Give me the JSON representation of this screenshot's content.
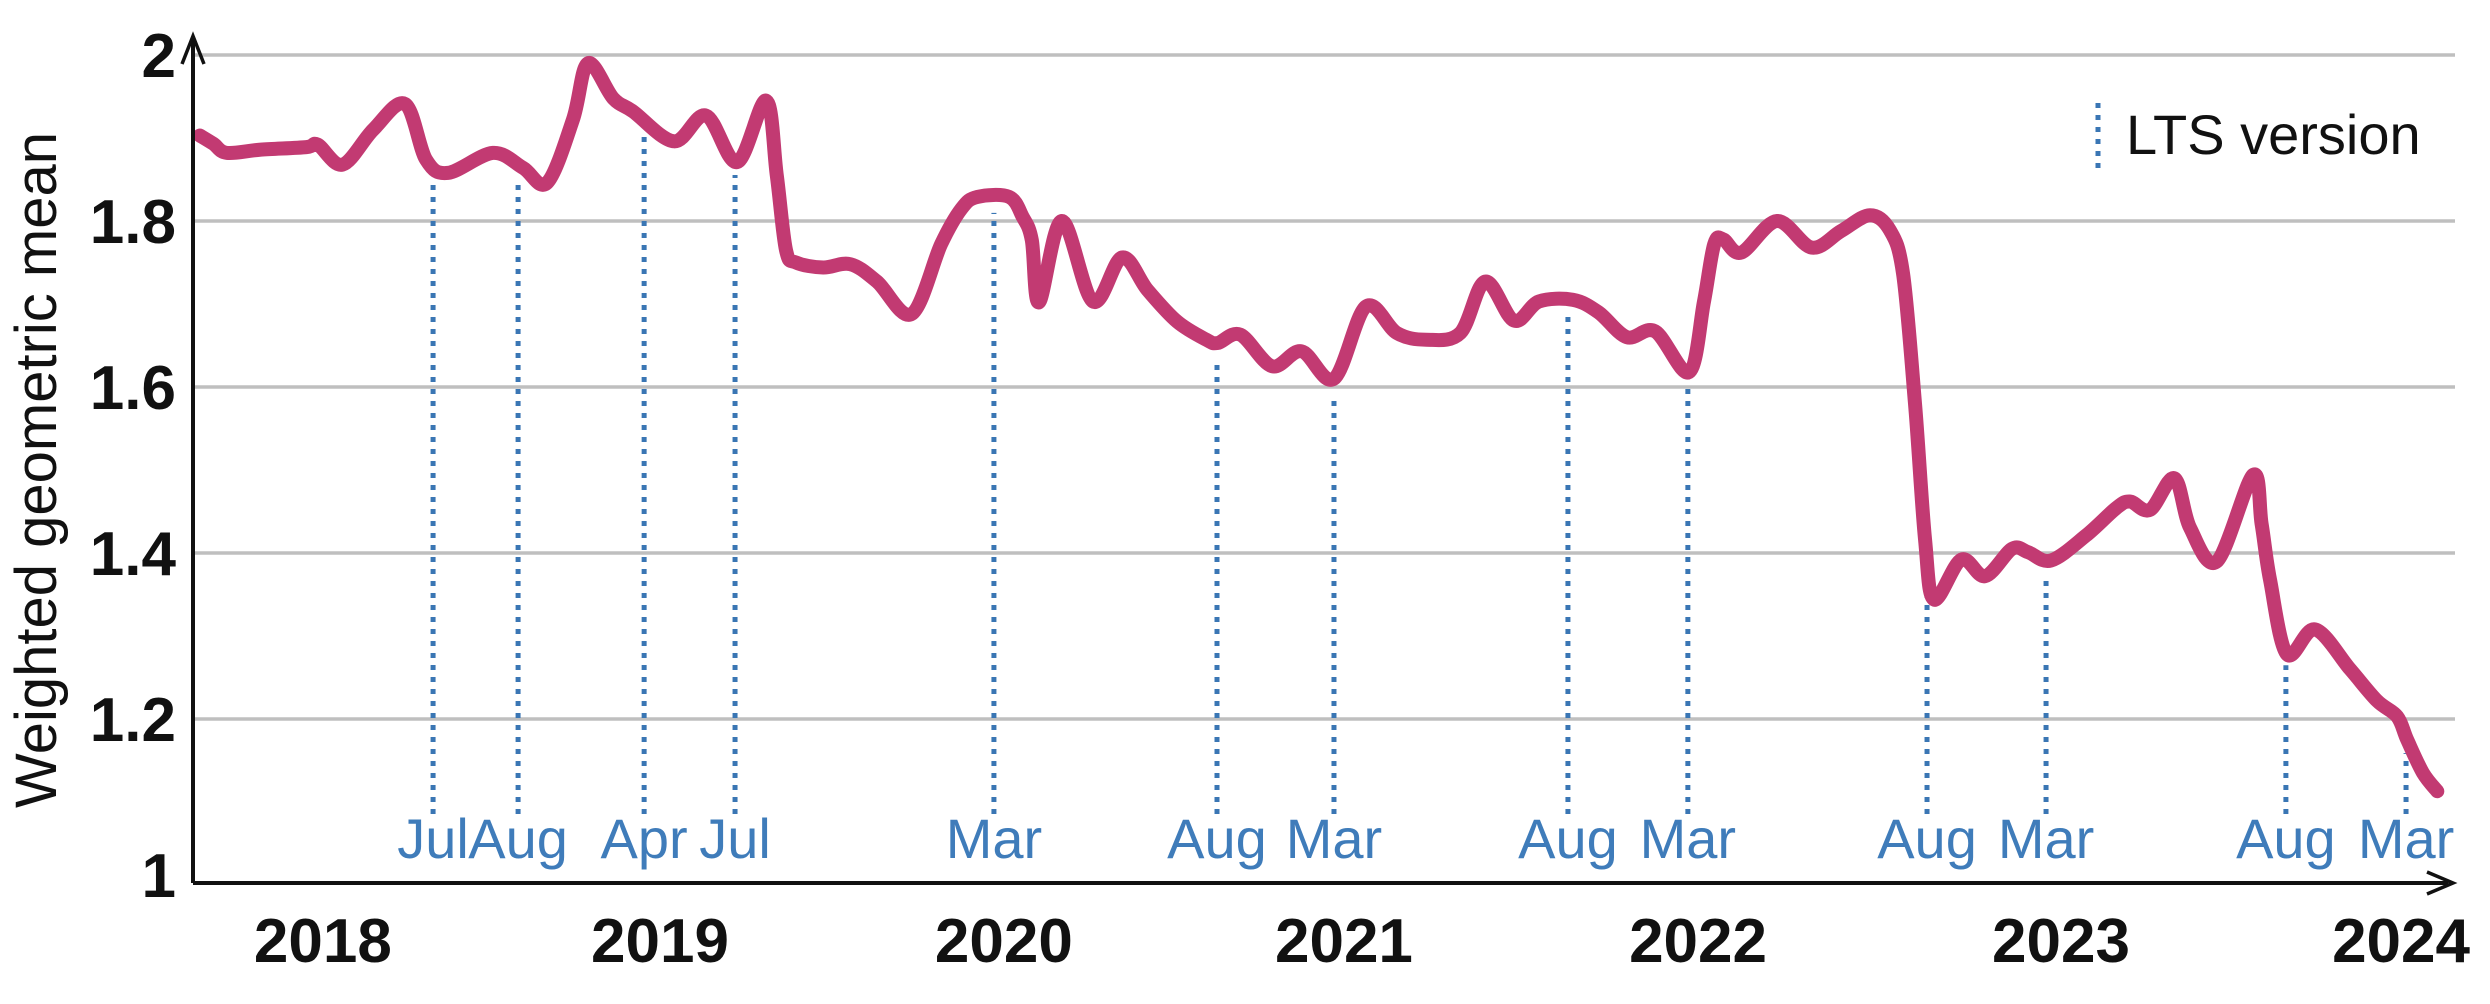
{
  "colors": {
    "series": "#c23a72",
    "lts": "#3a76b4",
    "month_label": "#3f7cba",
    "grid": "#bfbfbf",
    "axis": "#111111",
    "background": "#ffffff",
    "text": "#111111"
  },
  "chart_data": {
    "type": "line",
    "title": "",
    "xlabel": "",
    "ylabel": "Weighted geometric mean",
    "ylim": [
      1,
      2
    ],
    "grid": "horizontal only",
    "legend": {
      "label": "LTS version",
      "position": "top-right",
      "marker": "blue dotted vertical line"
    },
    "x_axis_note": "release-time axis from late 2017 to early 2024; positions are fractions 0-1 along the axis",
    "y_axis": {
      "ticks": [
        {
          "label": "2",
          "value": 2.0
        },
        {
          "label": "1.8",
          "value": 1.8
        },
        {
          "label": "1.6",
          "value": 1.6
        },
        {
          "label": "1.4",
          "value": 1.4
        },
        {
          "label": "1.2",
          "value": 1.2
        },
        {
          "label": "1",
          "value": 1.0
        }
      ]
    },
    "x_axis": {
      "ticks": [
        {
          "label": "2018",
          "pos": 0.0573
        },
        {
          "label": "2019",
          "pos": 0.206
        },
        {
          "label": "2020",
          "pos": 0.3577
        },
        {
          "label": "2021",
          "pos": 0.5077
        },
        {
          "label": "2022",
          "pos": 0.6639
        },
        {
          "label": "2023",
          "pos": 0.824
        },
        {
          "label": "2024",
          "pos": 0.974
        }
      ]
    },
    "lts_lines": [
      {
        "label": "Jul",
        "pos": 0.1059
      },
      {
        "label": "Aug",
        "pos": 0.1434
      },
      {
        "label": "Apr",
        "pos": 0.199
      },
      {
        "label": "Jul",
        "pos": 0.2391
      },
      {
        "label": "Mar",
        "pos": 0.3533
      },
      {
        "label": "Aug",
        "pos": 0.4517
      },
      {
        "label": "Mar",
        "pos": 0.5033
      },
      {
        "label": "Aug",
        "pos": 0.6065
      },
      {
        "label": "Mar",
        "pos": 0.6594
      },
      {
        "label": "Aug",
        "pos": 0.7649
      },
      {
        "label": "Mar",
        "pos": 0.8174
      },
      {
        "label": "Aug",
        "pos": 0.9232
      },
      {
        "label": "Mar",
        "pos": 0.9762
      }
    ],
    "series": [
      {
        "name": "Weighted geometric mean",
        "color_key": "series",
        "points": [
          [
            0.003,
            1.903
          ],
          [
            0.009,
            1.893
          ],
          [
            0.015,
            1.882
          ],
          [
            0.03,
            1.886
          ],
          [
            0.05,
            1.889
          ],
          [
            0.055,
            1.892
          ],
          [
            0.066,
            1.868
          ],
          [
            0.0795,
            1.91
          ],
          [
            0.0935,
            1.941
          ],
          [
            0.1028,
            1.874
          ],
          [
            0.1125,
            1.858
          ],
          [
            0.1323,
            1.882
          ],
          [
            0.1456,
            1.864
          ],
          [
            0.1562,
            1.846
          ],
          [
            0.1676,
            1.922
          ],
          [
            0.1742,
            1.99
          ],
          [
            0.1853,
            1.948
          ],
          [
            0.1941,
            1.932
          ],
          [
            0.2122,
            1.896
          ],
          [
            0.2263,
            1.927
          ],
          [
            0.24,
            1.871
          ],
          [
            0.2528,
            1.945
          ],
          [
            0.2575,
            1.855
          ],
          [
            0.2616,
            1.765
          ],
          [
            0.266,
            1.75
          ],
          [
            0.278,
            1.744
          ],
          [
            0.29,
            1.748
          ],
          [
            0.3017,
            1.727
          ],
          [
            0.317,
            1.688
          ],
          [
            0.33,
            1.772
          ],
          [
            0.339,
            1.815
          ],
          [
            0.346,
            1.829
          ],
          [
            0.36,
            1.829
          ],
          [
            0.366,
            1.805
          ],
          [
            0.37,
            1.777
          ],
          [
            0.3732,
            1.702
          ],
          [
            0.3833,
            1.8
          ],
          [
            0.397,
            1.703
          ],
          [
            0.4098,
            1.756
          ],
          [
            0.421,
            1.717
          ],
          [
            0.434,
            1.679
          ],
          [
            0.447,
            1.657
          ],
          [
            0.452,
            1.653
          ],
          [
            0.462,
            1.663
          ],
          [
            0.476,
            1.625
          ],
          [
            0.489,
            1.643
          ],
          [
            0.5033,
            1.61
          ],
          [
            0.5174,
            1.697
          ],
          [
            0.531,
            1.665
          ],
          [
            0.544,
            1.657
          ],
          [
            0.559,
            1.665
          ],
          [
            0.57,
            1.727
          ],
          [
            0.5827,
            1.68
          ],
          [
            0.5937,
            1.703
          ],
          [
            0.6087,
            1.705
          ],
          [
            0.62,
            1.69
          ],
          [
            0.6325,
            1.66
          ],
          [
            0.645,
            1.667
          ],
          [
            0.6599,
            1.618
          ],
          [
            0.6665,
            1.703
          ],
          [
            0.671,
            1.772
          ],
          [
            0.675,
            1.778
          ],
          [
            0.683,
            1.762
          ],
          [
            0.6987,
            1.8
          ],
          [
            0.714,
            1.768
          ],
          [
            0.727,
            1.788
          ],
          [
            0.7397,
            1.807
          ],
          [
            0.7485,
            1.789
          ],
          [
            0.7543,
            1.737
          ],
          [
            0.7596,
            1.58
          ],
          [
            0.764,
            1.417
          ],
          [
            0.768,
            1.344
          ],
          [
            0.78,
            1.392
          ],
          [
            0.7905,
            1.372
          ],
          [
            0.8024,
            1.405
          ],
          [
            0.8095,
            1.401
          ],
          [
            0.8196,
            1.391
          ],
          [
            0.835,
            1.421
          ],
          [
            0.8483,
            1.454
          ],
          [
            0.8544,
            1.462
          ],
          [
            0.8633,
            1.452
          ],
          [
            0.874,
            1.49
          ],
          [
            0.881,
            1.43
          ],
          [
            0.8928,
            1.39
          ],
          [
            0.9087,
            1.494
          ],
          [
            0.9125,
            1.435
          ],
          [
            0.9162,
            1.368
          ],
          [
            0.9237,
            1.278
          ],
          [
            0.9361,
            1.308
          ],
          [
            0.9515,
            1.26
          ],
          [
            0.9634,
            1.222
          ],
          [
            0.9723,
            1.203
          ],
          [
            0.9767,
            1.175
          ],
          [
            0.9837,
            1.135
          ],
          [
            0.99,
            1.113
          ]
        ]
      }
    ]
  }
}
